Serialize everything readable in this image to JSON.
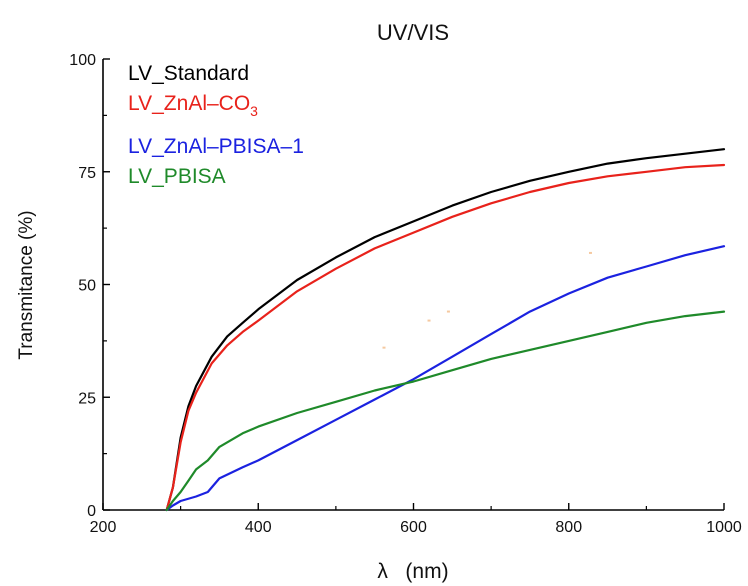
{
  "chart_data": {
    "type": "line",
    "title": "UV/VIS",
    "xlabel": "λ   (nm)",
    "ylabel": "Transmitance (%)",
    "xlim": [
      200,
      1000
    ],
    "ylim": [
      0,
      100
    ],
    "xticks": [
      200,
      400,
      600,
      800,
      1000
    ],
    "yticks": [
      0,
      25,
      50,
      75,
      100
    ],
    "grid": false,
    "legend_position": "top-left",
    "series": [
      {
        "name": "LV_Standard",
        "legend_main": "LV_Standard",
        "legend_sub": "",
        "legend_tail": "",
        "color": "#000000",
        "points": [
          [
            282,
            0
          ],
          [
            290,
            5
          ],
          [
            300,
            16
          ],
          [
            310,
            23
          ],
          [
            320,
            27.5
          ],
          [
            340,
            34
          ],
          [
            360,
            38.5
          ],
          [
            380,
            41.5
          ],
          [
            400,
            44.5
          ],
          [
            450,
            51
          ],
          [
            500,
            56
          ],
          [
            550,
            60.5
          ],
          [
            600,
            64
          ],
          [
            650,
            67.5
          ],
          [
            700,
            70.5
          ],
          [
            750,
            73
          ],
          [
            800,
            75
          ],
          [
            850,
            76.8
          ],
          [
            900,
            78
          ],
          [
            950,
            79
          ],
          [
            1000,
            80
          ]
        ]
      },
      {
        "name": "LV_ZnAl–CO3",
        "legend_main": "LV_ZnAl–CO",
        "legend_sub": "3",
        "legend_tail": "",
        "color": "#e8221b",
        "points": [
          [
            282,
            0
          ],
          [
            290,
            5
          ],
          [
            300,
            15
          ],
          [
            310,
            22
          ],
          [
            320,
            26
          ],
          [
            340,
            32.5
          ],
          [
            360,
            36.5
          ],
          [
            380,
            39.5
          ],
          [
            400,
            42
          ],
          [
            450,
            48.5
          ],
          [
            500,
            53.5
          ],
          [
            550,
            58
          ],
          [
            600,
            61.5
          ],
          [
            650,
            65
          ],
          [
            700,
            68
          ],
          [
            750,
            70.5
          ],
          [
            800,
            72.5
          ],
          [
            850,
            74
          ],
          [
            900,
            75
          ],
          [
            950,
            76
          ],
          [
            1000,
            76.5
          ]
        ]
      },
      {
        "name": "LV_ZnAl–PBISA–1",
        "legend_main": "LV_ZnAl–PBISA–1",
        "legend_sub": "",
        "legend_tail": "",
        "color": "#1b22e0",
        "points": [
          [
            282,
            0
          ],
          [
            290,
            1
          ],
          [
            300,
            2
          ],
          [
            320,
            3
          ],
          [
            335,
            4
          ],
          [
            350,
            7
          ],
          [
            380,
            9.5
          ],
          [
            400,
            11
          ],
          [
            450,
            15.5
          ],
          [
            500,
            20
          ],
          [
            550,
            24.5
          ],
          [
            600,
            29
          ],
          [
            650,
            34
          ],
          [
            700,
            39
          ],
          [
            750,
            44
          ],
          [
            800,
            48
          ],
          [
            850,
            51.5
          ],
          [
            900,
            54
          ],
          [
            950,
            56.5
          ],
          [
            1000,
            58.5
          ]
        ]
      },
      {
        "name": "LV_PBISA",
        "legend_main": "LV_PBISA",
        "legend_sub": "",
        "legend_tail": "",
        "color": "#1f8a2a",
        "points": [
          [
            282,
            0
          ],
          [
            290,
            2
          ],
          [
            300,
            4
          ],
          [
            310,
            6.5
          ],
          [
            320,
            9
          ],
          [
            335,
            11
          ],
          [
            350,
            14
          ],
          [
            380,
            17
          ],
          [
            400,
            18.5
          ],
          [
            450,
            21.5
          ],
          [
            500,
            24
          ],
          [
            550,
            26.5
          ],
          [
            600,
            28.5
          ],
          [
            650,
            31
          ],
          [
            700,
            33.5
          ],
          [
            750,
            35.5
          ],
          [
            800,
            37.5
          ],
          [
            850,
            39.5
          ],
          [
            900,
            41.5
          ],
          [
            950,
            43
          ],
          [
            1000,
            44
          ]
        ]
      }
    ],
    "stray_marks": [
      {
        "x": 562,
        "y": 36,
        "color": "#f5c9a0"
      },
      {
        "x": 620,
        "y": 42,
        "color": "#f5c9a0"
      },
      {
        "x": 645,
        "y": 44,
        "color": "#f5c9a0"
      },
      {
        "x": 828,
        "y": 57,
        "color": "#f5c9a0"
      }
    ]
  }
}
